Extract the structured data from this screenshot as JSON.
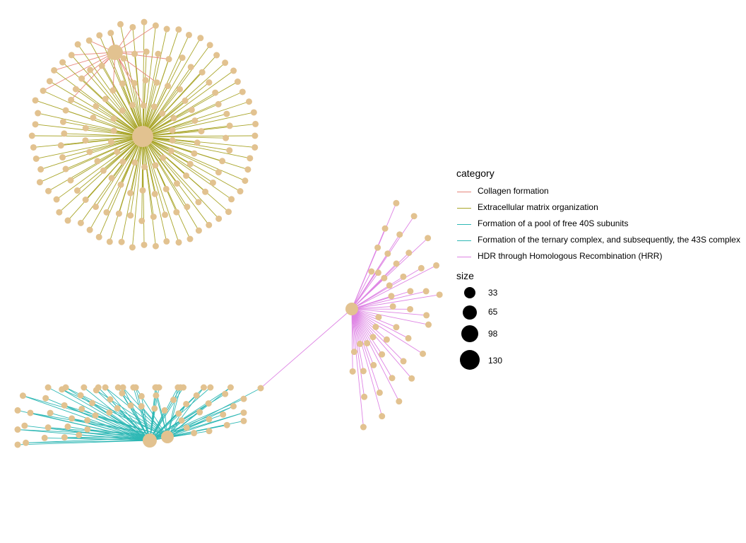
{
  "colors": {
    "collagen": "#E7857B",
    "ecm": "#A9A529",
    "free40s": "#2FB8B5",
    "ternary": "#2FB8B5",
    "hrr": "#DE84E4",
    "gene_node": "#E2C290",
    "background": "#FFFFFF"
  },
  "legend": {
    "category_title": "category",
    "categories": [
      {
        "key": "collagen",
        "label": "Collagen formation"
      },
      {
        "key": "ecm",
        "label": "Extracellular matrix organization"
      },
      {
        "key": "free40s",
        "label": "Formation of a pool of free 40S subunits"
      },
      {
        "key": "ternary",
        "label": "Formation of the ternary complex, and subsequently, the 43S complex"
      },
      {
        "key": "hrr",
        "label": "HDR through Homologous Recombination (HRR)"
      }
    ],
    "size_title": "size",
    "sizes": [
      {
        "label": "33",
        "value": 33
      },
      {
        "label": "65",
        "value": 65
      },
      {
        "label": "98",
        "value": 98
      },
      {
        "label": "130",
        "value": 130
      }
    ]
  }
}
